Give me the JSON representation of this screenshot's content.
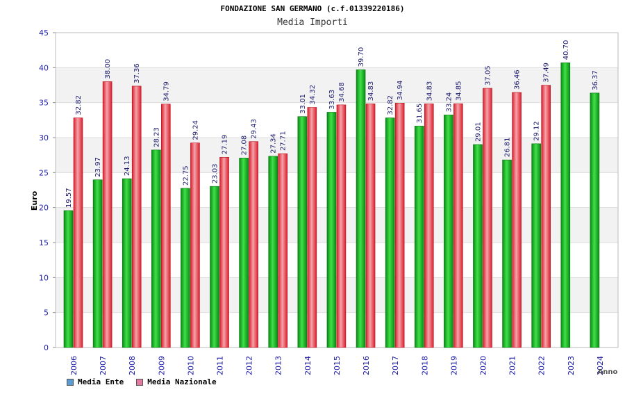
{
  "header": {
    "title": "FONDAZIONE SAN GERMANO (c.f.01339220186)",
    "subtitle": "Media Importi"
  },
  "legend": {
    "items": [
      {
        "label": "Media Ente",
        "color": "#5b9bd5"
      },
      {
        "label": "Media Nazionale",
        "color": "#e07aa0"
      }
    ]
  },
  "chart_data": {
    "type": "bar",
    "categories": [
      "2006",
      "2007",
      "2008",
      "2009",
      "2010",
      "2011",
      "2012",
      "2013",
      "2014",
      "2015",
      "2016",
      "2017",
      "2018",
      "2019",
      "2020",
      "2021",
      "2022",
      "2023",
      "2024"
    ],
    "series": [
      {
        "name": "Media Ente",
        "color": "#11b01b",
        "values": [
          19.57,
          23.97,
          24.13,
          28.23,
          22.75,
          23.03,
          27.08,
          27.34,
          33.01,
          33.63,
          39.7,
          32.82,
          31.65,
          33.24,
          29.01,
          26.81,
          29.12,
          40.7,
          36.37
        ]
      },
      {
        "name": "Media Nazionale",
        "color": "#e8303c",
        "values": [
          32.82,
          38.0,
          37.36,
          34.79,
          29.24,
          27.19,
          29.43,
          27.71,
          34.32,
          34.68,
          34.83,
          34.94,
          34.83,
          34.85,
          37.05,
          36.46,
          37.49,
          null,
          null
        ]
      }
    ],
    "value_labels": {
      "Media Ente": [
        "19.57",
        "23.97",
        "24.13",
        "28.23",
        "22.75",
        "23.03",
        "27.08",
        "27.34",
        "33.01",
        "33.63",
        "39.70",
        "32.82",
        "31.65",
        "33.24",
        "29.01",
        "26.81",
        "29.12",
        "40.70",
        "36.37"
      ],
      "Media Nazionale": [
        "32.82",
        "38.00",
        "37.36",
        "34.79",
        "29.24",
        "27.19",
        "29.43",
        "27.71",
        "34.32",
        "34.68",
        "34.83",
        "34.94",
        "34.83",
        "34.85",
        "37.05",
        "36.46",
        "37.49",
        null,
        null
      ]
    },
    "ylabel": "Euro",
    "xlabel": "Anno",
    "ylim": [
      0,
      45
    ],
    "yticks": [
      0,
      5,
      10,
      15,
      20,
      25,
      30,
      35,
      40,
      45
    ],
    "grid": true
  }
}
